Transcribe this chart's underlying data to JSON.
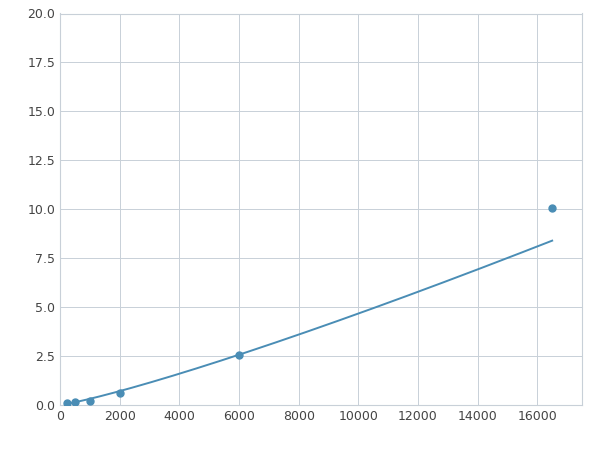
{
  "x_points": [
    250,
    500,
    1000,
    2000,
    6000,
    16500
  ],
  "y_points": [
    0.08,
    0.15,
    0.22,
    0.62,
    2.55,
    10.05
  ],
  "line_color": "#4a8db5",
  "marker_color": "#4a8db5",
  "marker_size": 5,
  "line_width": 1.4,
  "xlim": [
    0,
    17500
  ],
  "ylim": [
    0,
    20
  ],
  "xticks": [
    0,
    2000,
    4000,
    6000,
    8000,
    10000,
    12000,
    14000,
    16000
  ],
  "yticks": [
    0.0,
    2.5,
    5.0,
    7.5,
    10.0,
    12.5,
    15.0,
    17.5,
    20.0
  ],
  "grid_color": "#c8d0d8",
  "background_color": "#ffffff",
  "fig_width": 6.0,
  "fig_height": 4.5,
  "dpi": 100
}
